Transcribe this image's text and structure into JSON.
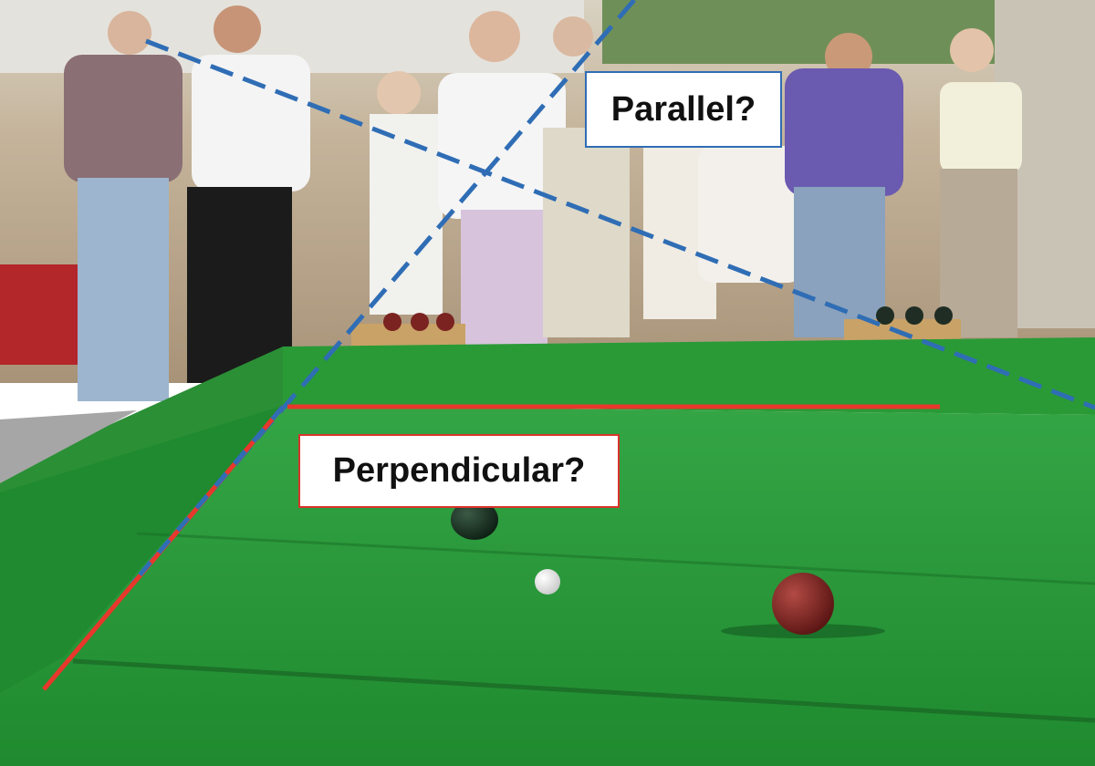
{
  "annotations": {
    "parallel_label": "Parallel?",
    "perpendicular_label": "Perpendicular?"
  },
  "colors": {
    "turf_green": "#2e9a3c",
    "turf_dark": "#1f7a2c",
    "wall_green": "#279134",
    "background_dirt": "#b8a48c",
    "parallel_dash": "#2f6db5",
    "perpendicular_line": "#e8372b"
  },
  "scene": {
    "subject": "bocce-court-spectators",
    "balls": [
      "dark-green-ball",
      "white-pallino",
      "red-ball"
    ]
  }
}
